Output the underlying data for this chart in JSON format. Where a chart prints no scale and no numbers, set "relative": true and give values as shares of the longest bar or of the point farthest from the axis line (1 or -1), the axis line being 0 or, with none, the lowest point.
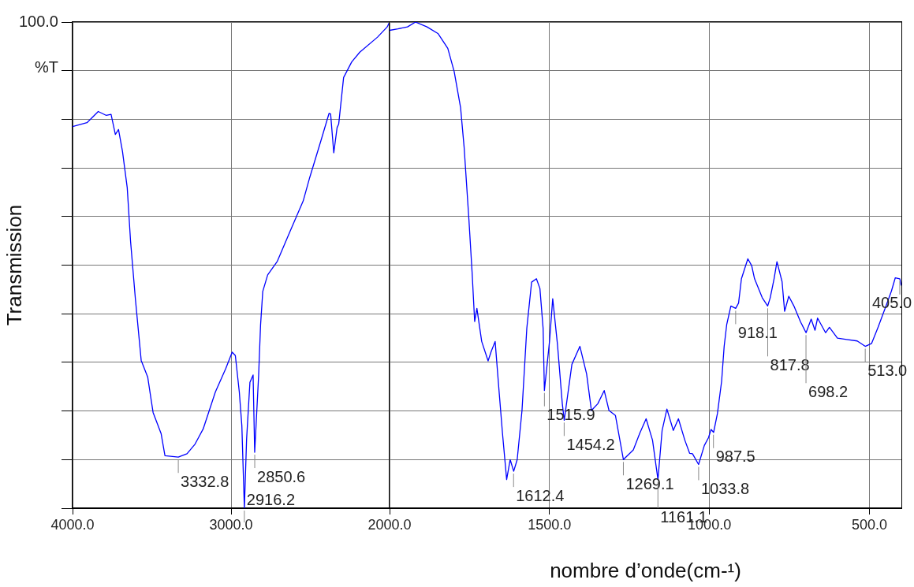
{
  "chart_data": [
    {
      "type": "line",
      "relative": true,
      "ylabel": "Transmission",
      "xlim": [
        4000,
        2000
      ],
      "xticks": [
        {
          "value": 4000,
          "label": "4000.0"
        },
        {
          "value": 3000,
          "label": "3000.0"
        }
      ],
      "grid": true,
      "series": [
        {
          "color": "#0000ff",
          "x": [
            4000,
            3909,
            3838,
            3787,
            3757,
            3730,
            3710,
            3685,
            3655,
            3634,
            3604,
            3567,
            3526,
            3492,
            3441,
            3417,
            3333,
            3278,
            3227,
            3176,
            3099,
            3034,
            2993,
            2973,
            2948,
            2932,
            2916,
            2902,
            2881,
            2861,
            2851,
            2826,
            2814,
            2800,
            2769,
            2708,
            2627,
            2545,
            2504,
            2433,
            2382,
            2372,
            2352,
            2331,
            2321,
            2290,
            2239,
            2188,
            2076,
            2015,
            2000
          ],
          "values": [
            0.785,
            0.793,
            0.816,
            0.808,
            0.81,
            0.769,
            0.779,
            0.734,
            0.659,
            0.549,
            0.432,
            0.304,
            0.27,
            0.197,
            0.153,
            0.108,
            0.105,
            0.112,
            0.132,
            0.163,
            0.239,
            0.287,
            0.321,
            0.314,
            0.239,
            0.17,
            0,
            0.142,
            0.259,
            0.274,
            0.115,
            0.274,
            0.376,
            0.446,
            0.48,
            0.508,
            0.57,
            0.632,
            0.68,
            0.756,
            0.812,
            0.811,
            0.731,
            0.783,
            0.79,
            0.886,
            0.918,
            0.938,
            0.969,
            0.99,
            1
          ]
        }
      ],
      "annotations": [
        "100.0",
        "%T",
        {
          "text": "3332.8",
          "x": 3332.8,
          "y": 0.105
        },
        {
          "text": "2916.2",
          "x": 2916.2,
          "y": 0
        },
        {
          "text": "2850.6",
          "x": 2850.6,
          "y": 0.115
        }
      ]
    },
    {
      "type": "line",
      "relative": true,
      "xlabel": "nombre d’onde(cm-¹)",
      "xlim": [
        2000,
        400
      ],
      "xticks": [
        {
          "value": 2000,
          "label": "2000.0"
        },
        {
          "value": 1500,
          "label": "1500.0"
        },
        {
          "value": 1000,
          "label": "1000.0"
        },
        {
          "value": 500,
          "label": "500.0"
        }
      ],
      "grid": true,
      "series": [
        {
          "color": "#0000ff",
          "x": [
            2000,
            1974,
            1944,
            1919,
            1883,
            1848,
            1818,
            1798,
            1778,
            1767,
            1752,
            1742,
            1734,
            1727,
            1712,
            1692,
            1682,
            1670,
            1657,
            1647,
            1634,
            1623,
            1612,
            1601,
            1586,
            1571,
            1556,
            1541,
            1530,
            1520,
            1516,
            1500,
            1490,
            1475,
            1460,
            1454,
            1430,
            1405,
            1384,
            1369,
            1349,
            1329,
            1314,
            1294,
            1269,
            1238,
            1218,
            1198,
            1178,
            1161,
            1148,
            1133,
            1113,
            1097,
            1077,
            1062,
            1053,
            1034,
            1016,
            1003,
            995,
            987,
            975,
            962,
            954,
            946,
            933,
            918,
            909,
            900,
            880,
            868,
            859,
            835,
            818,
            810,
            798,
            789,
            773,
            765,
            752,
            736,
            715,
            698,
            682,
            670,
            662,
            637,
            625,
            600,
            571,
            538,
            513,
            493,
            473,
            448,
            431,
            419,
            405,
            400
          ],
          "values": [
            0.983,
            0.986,
            0.99,
            1,
            0.99,
            0.976,
            0.946,
            0.898,
            0.824,
            0.743,
            0.594,
            0.485,
            0.384,
            0.411,
            0.343,
            0.303,
            0.323,
            0.343,
            0.235,
            0.154,
            0.059,
            0.1,
            0.076,
            0.1,
            0.201,
            0.37,
            0.465,
            0.472,
            0.452,
            0.37,
            0.242,
            0.343,
            0.431,
            0.336,
            0.215,
            0.181,
            0.296,
            0.333,
            0.276,
            0.201,
            0.215,
            0.242,
            0.201,
            0.191,
            0.1,
            0.12,
            0.154,
            0.184,
            0.14,
            0.059,
            0.16,
            0.204,
            0.16,
            0.184,
            0.14,
            0.113,
            0.112,
            0.09,
            0.129,
            0.145,
            0.162,
            0.156,
            0.195,
            0.261,
            0.333,
            0.378,
            0.416,
            0.411,
            0.422,
            0.472,
            0.513,
            0.499,
            0.472,
            0.433,
            0.416,
            0.433,
            0.472,
            0.507,
            0.466,
            0.405,
            0.436,
            0.416,
            0.383,
            0.361,
            0.389,
            0.366,
            0.391,
            0.361,
            0.372,
            0.35,
            0.347,
            0.344,
            0.333,
            0.339,
            0.372,
            0.416,
            0.447,
            0.474,
            0.472,
            0.458
          ]
        }
      ],
      "annotations": [
        {
          "text": "1612.4",
          "x": 1612.4,
          "y": 0.076
        },
        {
          "text": "1515.9",
          "x": 1515.9,
          "y": 0.242
        },
        {
          "text": "1454.2",
          "x": 1454.2,
          "y": 0.181
        },
        {
          "text": "1269.1",
          "x": 1269.1,
          "y": 0.1
        },
        {
          "text": "1161.1",
          "x": 1161.1,
          "y": 0.059
        },
        {
          "text": "1033.8",
          "x": 1033.8,
          "y": 0.09
        },
        {
          "text": "987.5",
          "x": 987.5,
          "y": 0.156
        },
        {
          "text": "918.1",
          "x": 918.1,
          "y": 0.411
        },
        {
          "text": "817.8",
          "x": 817.8,
          "y": 0.416
        },
        {
          "text": "698.2",
          "x": 698.2,
          "y": 0.361
        },
        {
          "text": "513.0",
          "x": 513.0,
          "y": 0.333
        },
        {
          "text": "405.0",
          "x": 405.0,
          "y": 0.472
        }
      ]
    }
  ]
}
